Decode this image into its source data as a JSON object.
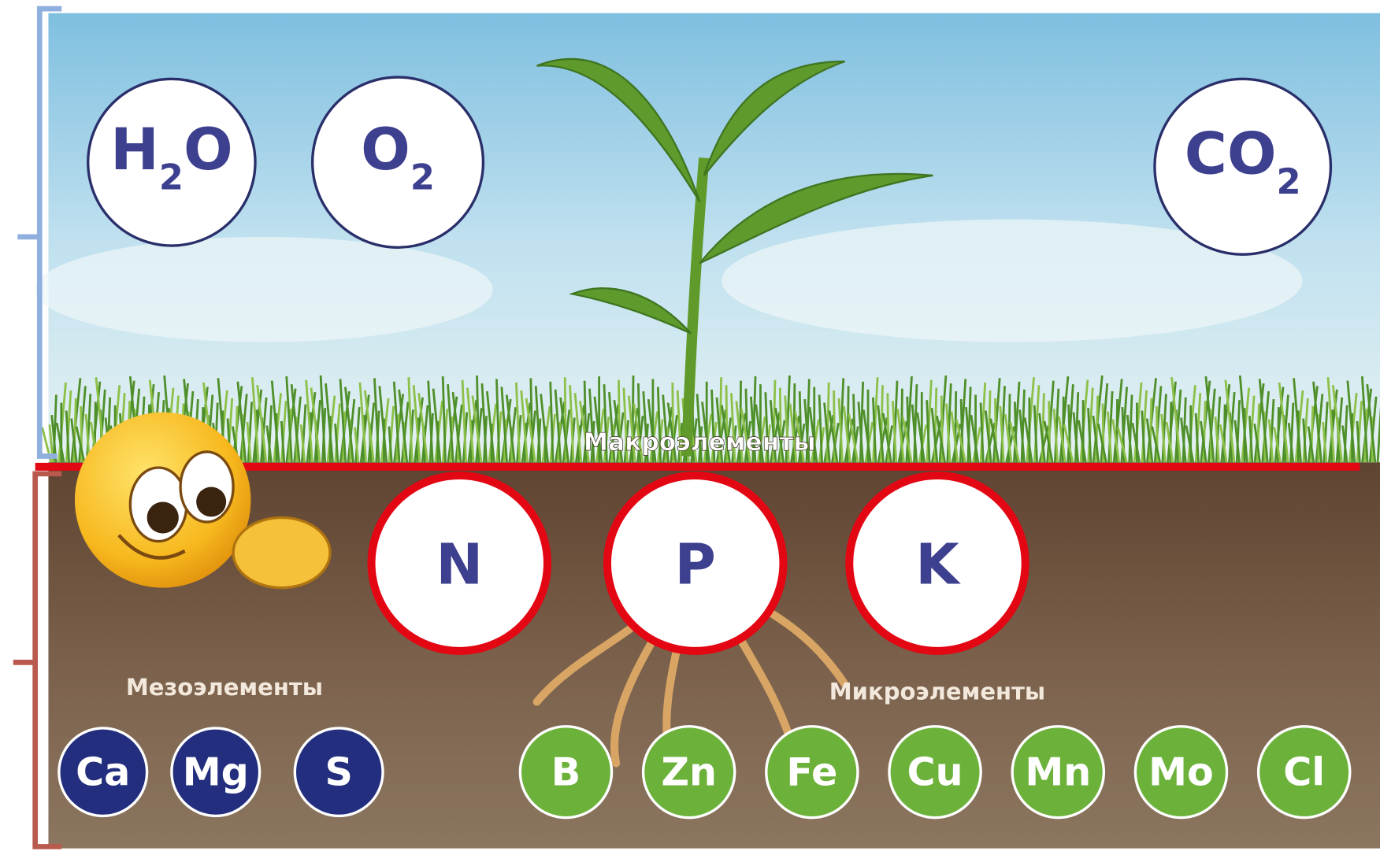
{
  "gases": [
    {
      "symbol": "H",
      "subscript": "2",
      "suffix": "O"
    },
    {
      "symbol": "O",
      "subscript": "2"
    },
    {
      "symbol": "CO",
      "subscript": "2"
    }
  ],
  "macro": {
    "label": "Макроэлементы",
    "elements": [
      "N",
      "P",
      "K"
    ]
  },
  "meso": {
    "label": "Мезоэлементы",
    "elements": [
      "Ca",
      "Mg",
      "S"
    ]
  },
  "micro": {
    "label": "Микроэлементы",
    "elements": [
      "B",
      "Zn",
      "Fe",
      "Cu",
      "Mn",
      "Mo",
      "Cl"
    ]
  }
}
